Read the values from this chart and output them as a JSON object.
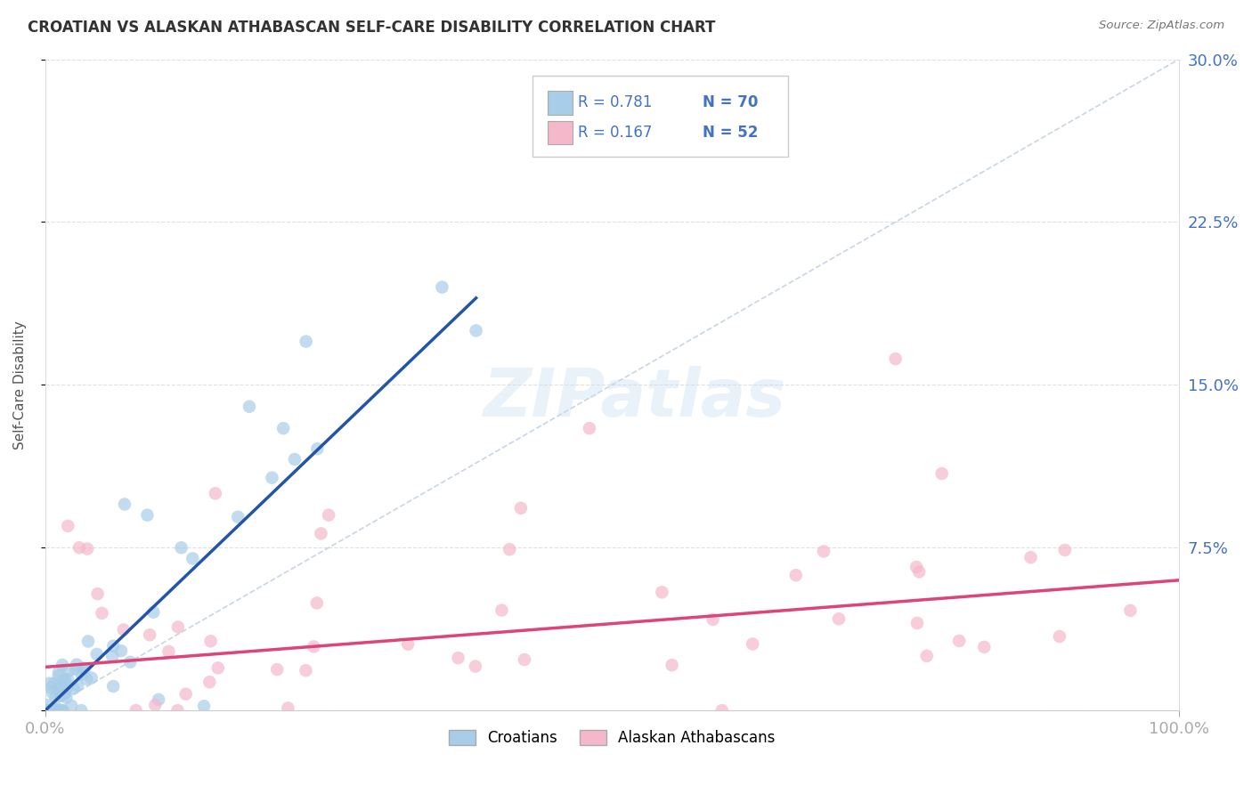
{
  "title": "CROATIAN VS ALASKAN ATHABASCAN SELF-CARE DISABILITY CORRELATION CHART",
  "source": "Source: ZipAtlas.com",
  "ylabel": "Self-Care Disability",
  "xlim": [
    0,
    1.0
  ],
  "ylim": [
    0,
    0.3
  ],
  "yticks": [
    0.0,
    0.075,
    0.15,
    0.225,
    0.3
  ],
  "ytick_labels": [
    "",
    "7.5%",
    "15.0%",
    "22.5%",
    "30.0%"
  ],
  "xticks": [
    0.0,
    1.0
  ],
  "xtick_labels": [
    "0.0%",
    "100.0%"
  ],
  "r_croatian": 0.781,
  "n_croatian": 70,
  "r_athabascan": 0.167,
  "n_athabascan": 52,
  "color_croatian": "#a8cde8",
  "color_athabascan": "#f5b8cb",
  "line_color_croatian": "#2255aa",
  "line_color_athabascan": "#dd4477",
  "diagonal_color": "#bbccdd",
  "background_color": "#ffffff",
  "grid_color": "#cccccc",
  "legend_label_croatian": "Croatians",
  "legend_label_athabascan": "Alaskan Athabascans",
  "watermark": "ZIPatlas",
  "title_color": "#333333",
  "source_color": "#777777",
  "tick_color": "#4472c4",
  "ylabel_color": "#555555"
}
